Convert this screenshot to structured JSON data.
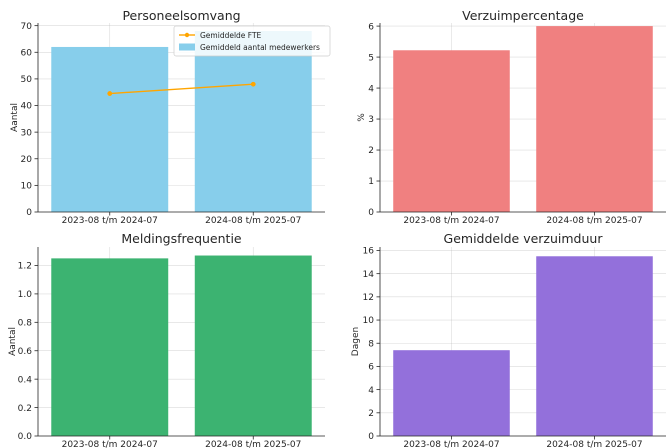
{
  "chart_data": [
    {
      "type": "bar",
      "title": "Personeelsomvang",
      "ylabel": "Aantal",
      "categories": [
        "2023-08 t/m 2024-07",
        "2024-08 t/m 2025-07"
      ],
      "series": [
        {
          "name": "Gemiddeld aantal medewerkers",
          "type": "bar",
          "values": [
            62,
            68
          ],
          "color": "#87CEEB"
        },
        {
          "name": "Gemiddelde FTE",
          "type": "line",
          "values": [
            44.5,
            48
          ],
          "color": "#FFA500"
        }
      ],
      "ylim": [
        0,
        71
      ],
      "yticks": [
        0,
        10,
        20,
        30,
        40,
        50,
        60,
        70
      ],
      "yticklabels": [
        "0",
        "10",
        "20",
        "30",
        "40",
        "50",
        "60",
        "70"
      ],
      "grid": true,
      "legend": "top-right"
    },
    {
      "type": "bar",
      "title": "Verzuimpercentage",
      "ylabel": "%",
      "categories": [
        "2023-08 t/m 2024-07",
        "2024-08 t/m 2025-07"
      ],
      "series": [
        {
          "type": "bar",
          "values": [
            5.22,
            6.0
          ],
          "color": "#F08080"
        }
      ],
      "ylim": [
        0,
        6.1
      ],
      "yticks": [
        0,
        1,
        2,
        3,
        4,
        5,
        6
      ],
      "yticklabels": [
        "0",
        "1",
        "2",
        "3",
        "4",
        "5",
        "6"
      ],
      "grid": true
    },
    {
      "type": "bar",
      "title": "Meldingsfrequentie",
      "ylabel": "Aantal",
      "categories": [
        "2023-08 t/m 2024-07",
        "2024-08 t/m 2025-07"
      ],
      "series": [
        {
          "type": "bar",
          "values": [
            1.25,
            1.27
          ],
          "color": "#3CB371"
        }
      ],
      "ylim": [
        0,
        1.33
      ],
      "yticks": [
        0,
        0.2,
        0.4,
        0.6,
        0.8,
        1.0,
        1.2
      ],
      "yticklabels": [
        "0.0",
        "0.2",
        "0.4",
        "0.6",
        "0.8",
        "1.0",
        "1.2"
      ],
      "grid": true
    },
    {
      "type": "bar",
      "title": "Gemiddelde verzuimduur",
      "ylabel": "Dagen",
      "categories": [
        "2023-08 t/m 2024-07",
        "2024-08 t/m 2025-07"
      ],
      "series": [
        {
          "type": "bar",
          "values": [
            7.4,
            15.5
          ],
          "color": "#9370DB"
        }
      ],
      "ylim": [
        0,
        16.3
      ],
      "yticks": [
        0,
        2,
        4,
        6,
        8,
        10,
        12,
        14,
        16
      ],
      "yticklabels": [
        "0",
        "2",
        "4",
        "6",
        "8",
        "10",
        "12",
        "14",
        "16"
      ],
      "grid": true
    }
  ]
}
